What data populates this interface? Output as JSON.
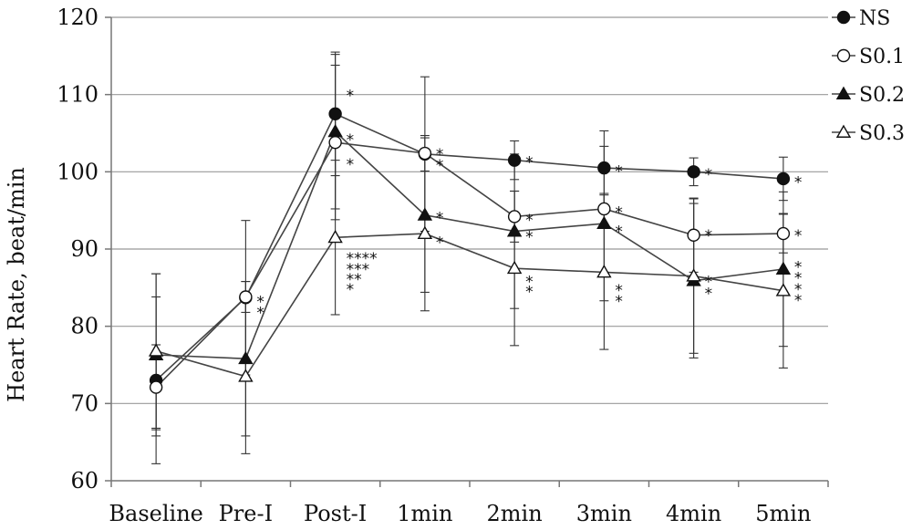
{
  "chart_data": {
    "type": "line",
    "title": "",
    "xlabel": "",
    "ylabel": "Heart Rate, beat/min",
    "ylim": [
      60,
      120
    ],
    "yticks": [
      60,
      70,
      80,
      90,
      100,
      110,
      120
    ],
    "grid": "horizontal",
    "legend_position": "top-right",
    "categories": [
      "Baseline",
      "Pre-I",
      "Post-I",
      "1min",
      "2min",
      "3min",
      "4min",
      "5min"
    ],
    "series": [
      {
        "name": "NS",
        "marker": "filled-circle",
        "values": [
          73.0,
          83.7,
          107.5,
          102.3,
          101.5,
          100.5,
          100.0,
          99.1
        ],
        "error_bars": [
          10.8,
          10.0,
          8.0,
          10.0,
          2.5,
          4.8,
          1.8,
          2.8
        ],
        "significance": [
          "",
          "",
          "*",
          "*",
          "*",
          "*",
          "*",
          "*"
        ]
      },
      {
        "name": "S0.1",
        "marker": "open-circle",
        "values": [
          72.1,
          83.8,
          103.8,
          102.4,
          94.2,
          95.2,
          91.8,
          92.0
        ],
        "error_bars": [
          5.5,
          2.0,
          10.0,
          2.3,
          3.3,
          2.0,
          4.8,
          2.5
        ],
        "significance": [
          "",
          "*",
          "*",
          "*",
          "*",
          "*",
          "*",
          "*"
        ]
      },
      {
        "name": "S0.2",
        "marker": "filled-triangle",
        "values": [
          76.3,
          75.8,
          105.2,
          94.4,
          92.3,
          93.3,
          85.9,
          87.4
        ],
        "error_bars": [
          10.5,
          10.0,
          10.0,
          10.0,
          10.0,
          10.0,
          10.0,
          10.0
        ],
        "significance": [
          "",
          "",
          "",
          "*",
          "*",
          "*",
          "*",
          "*"
        ]
      },
      {
        "name": "S0.3",
        "marker": "open-triangle",
        "values": [
          76.8,
          73.5,
          91.5,
          92.0,
          87.5,
          87.0,
          86.5,
          84.6
        ],
        "error_bars": [
          10.0,
          10.0,
          10.0,
          10.0,
          10.0,
          10.0,
          10.0,
          10.0
        ],
        "significance": [
          "",
          "",
          "",
          "*",
          "*",
          "*",
          "*",
          "*"
        ]
      }
    ],
    "annotations": [
      {
        "text": "*",
        "category": "Post-I",
        "y": 110.6
      },
      {
        "text": "*",
        "category": "Post-I",
        "y": 104.9
      },
      {
        "text": "*",
        "category": "Post-I",
        "y": 101.7
      },
      {
        "text": "****",
        "category": "Post-I",
        "y": 89.5
      },
      {
        "text": "***",
        "category": "Post-I",
        "y": 88.1
      },
      {
        "text": "**",
        "category": "Post-I",
        "y": 86.8
      },
      {
        "text": "*",
        "category": "Post-I",
        "y": 85.5
      },
      {
        "text": "*",
        "category": "Pre-I",
        "y": 83.9
      },
      {
        "text": "*",
        "category": "Pre-I",
        "y": 82.5
      },
      {
        "text": "*",
        "category": "1min",
        "y": 103.0
      },
      {
        "text": "*",
        "category": "1min",
        "y": 101.6
      },
      {
        "text": "*",
        "category": "1min",
        "y": 94.8
      },
      {
        "text": "*",
        "category": "1min",
        "y": 91.6
      },
      {
        "text": "*",
        "category": "2min",
        "y": 102.0
      },
      {
        "text": "*",
        "category": "2min",
        "y": 94.5
      },
      {
        "text": "*",
        "category": "2min",
        "y": 92.3
      },
      {
        "text": "*",
        "category": "2min",
        "y": 86.5
      },
      {
        "text": "*",
        "category": "2min",
        "y": 85.2
      },
      {
        "text": "*",
        "category": "3min",
        "y": 100.8
      },
      {
        "text": "*",
        "category": "3min",
        "y": 95.5
      },
      {
        "text": "*",
        "category": "3min",
        "y": 93.0
      },
      {
        "text": "*",
        "category": "3min",
        "y": 85.4
      },
      {
        "text": "*",
        "category": "3min",
        "y": 84.0
      },
      {
        "text": "*",
        "category": "4min",
        "y": 100.4
      },
      {
        "text": "*",
        "category": "4min",
        "y": 92.5
      },
      {
        "text": "*",
        "category": "4min",
        "y": 86.5
      },
      {
        "text": "*",
        "category": "4min",
        "y": 85.0
      },
      {
        "text": "*",
        "category": "5min",
        "y": 99.4
      },
      {
        "text": "*",
        "category": "5min",
        "y": 92.5
      },
      {
        "text": "*",
        "category": "5min",
        "y": 88.4
      },
      {
        "text": "*",
        "category": "5min",
        "y": 87.0
      },
      {
        "text": "*",
        "category": "5min",
        "y": 85.5
      },
      {
        "text": "*",
        "category": "5min",
        "y": 84.1
      }
    ]
  }
}
